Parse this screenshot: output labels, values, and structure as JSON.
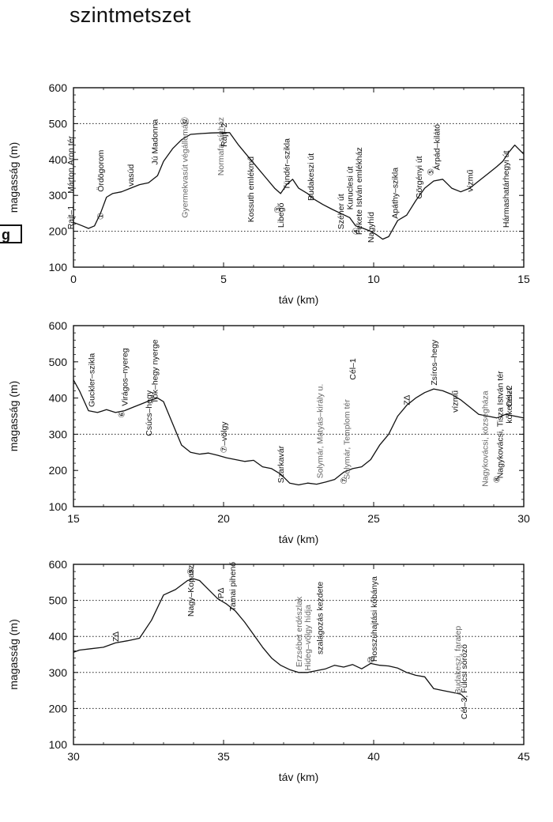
{
  "page": {
    "title": "szintmetszet",
    "side_mark": "g"
  },
  "chart_data": [
    {
      "type": "line",
      "xlabel": "táv (km)",
      "ylabel": "magasság (m)",
      "xlim": [
        0,
        15
      ],
      "ylim": [
        100,
        600
      ],
      "xticks": [
        0,
        5,
        10,
        15
      ],
      "yticks": [
        100,
        200,
        300,
        400,
        500,
        600
      ],
      "reference_lines": [
        200,
        500
      ],
      "series": [
        {
          "x": [
            0,
            0.3,
            0.5,
            0.7,
            0.9,
            1.1,
            1.3,
            1.6,
            1.9,
            2.2,
            2.5,
            2.8,
            3.0,
            3.3,
            3.6,
            3.9,
            4.2,
            4.6,
            5.0,
            5.2,
            5.5,
            5.8,
            6.1,
            6.4,
            6.7,
            6.9,
            7.1,
            7.3,
            7.5,
            7.8,
            8.0,
            8.3,
            8.6,
            8.9,
            9.2,
            9.4,
            9.6,
            9.9,
            10.1,
            10.3,
            10.5,
            10.8,
            11.1,
            11.4,
            11.7,
            12.0,
            12.3,
            12.6,
            12.9,
            13.2,
            13.5,
            13.8,
            14.1,
            14.3,
            14.5,
            14.7,
            15.0
          ],
          "y": [
            225,
            215,
            208,
            215,
            250,
            295,
            305,
            310,
            320,
            330,
            335,
            355,
            395,
            430,
            455,
            470,
            472,
            474,
            475,
            475,
            440,
            410,
            380,
            350,
            320,
            305,
            330,
            345,
            320,
            305,
            290,
            275,
            262,
            250,
            238,
            215,
            210,
            200,
            190,
            178,
            185,
            230,
            245,
            285,
            320,
            340,
            345,
            320,
            310,
            320,
            340,
            360,
            380,
            395,
            420,
            440,
            415
          ]
        }
      ],
      "annotations": [
        {
          "x": 0.0,
          "y": 205,
          "text": "Rajt–1"
        },
        {
          "x": 0.0,
          "y": 305,
          "text": "Márton Áron tér"
        },
        {
          "x": 1.0,
          "y": 310,
          "text": "Ördögorom"
        },
        {
          "x": 1.0,
          "y": 232,
          "text": "①"
        },
        {
          "x": 2.0,
          "y": 325,
          "text": "vasúd"
        },
        {
          "x": 2.8,
          "y": 385,
          "text": "Jú Madonna"
        },
        {
          "x": 3.8,
          "y": 237,
          "text": "Gyermekvasút végállomás",
          "gray": true
        },
        {
          "x": 3.8,
          "y": 495,
          "text": "⑫"
        },
        {
          "x": 5.0,
          "y": 355,
          "text": "Normafa sínház",
          "gray": true
        },
        {
          "x": 5.1,
          "y": 435,
          "text": "Rajt–2"
        },
        {
          "x": 6.0,
          "y": 225,
          "text": "Kossuth emlékmű"
        },
        {
          "x": 7.2,
          "y": 315,
          "text": "Tündér–szikla"
        },
        {
          "x": 6.9,
          "y": 250,
          "text": "③"
        },
        {
          "x": 7.0,
          "y": 210,
          "text": "Libegő"
        },
        {
          "x": 8.0,
          "y": 285,
          "text": "Budakeszi út"
        },
        {
          "x": 9.0,
          "y": 205,
          "text": "Széher út"
        },
        {
          "x": 9.3,
          "y": 260,
          "text": "Kuruclesi út"
        },
        {
          "x": 9.5,
          "y": 190,
          "text": "④"
        },
        {
          "x": 9.6,
          "y": 190,
          "text": "Fekete István emlékház"
        },
        {
          "x": 10.0,
          "y": 168,
          "text": "Nagyhíd"
        },
        {
          "x": 10.8,
          "y": 235,
          "text": "Apáthy–szikla"
        },
        {
          "x": 11.6,
          "y": 290,
          "text": "Görgényi út"
        },
        {
          "x": 12.0,
          "y": 355,
          "text": "⑤"
        },
        {
          "x": 12.2,
          "y": 370,
          "text": "Árpád–kilátó"
        },
        {
          "x": 13.3,
          "y": 310,
          "text": "vízmű"
        },
        {
          "x": 14.5,
          "y": 210,
          "text": "Hármashatárhegyi út"
        }
      ]
    },
    {
      "type": "line",
      "xlabel": "táv (km)",
      "ylabel": "magasság (m)",
      "xlim": [
        15,
        30
      ],
      "ylim": [
        100,
        600
      ],
      "xticks": [
        15,
        20,
        25,
        30
      ],
      "yticks": [
        100,
        200,
        300,
        400,
        500,
        600
      ],
      "reference_lines": [
        300
      ],
      "series": [
        {
          "x": [
            15,
            15.2,
            15.5,
            15.8,
            16.1,
            16.4,
            16.7,
            17.0,
            17.3,
            17.6,
            17.8,
            18.0,
            18.3,
            18.6,
            18.9,
            19.2,
            19.5,
            19.8,
            20.1,
            20.4,
            20.7,
            21.0,
            21.3,
            21.6,
            21.9,
            22.2,
            22.5,
            22.8,
            23.1,
            23.4,
            23.7,
            24.0,
            24.3,
            24.6,
            24.9,
            25.2,
            25.5,
            25.8,
            26.1,
            26.4,
            26.7,
            27.0,
            27.3,
            27.6,
            27.9,
            28.2,
            28.5,
            28.8,
            29.1,
            29.4,
            29.7,
            30.0
          ],
          "y": [
            450,
            420,
            365,
            360,
            368,
            360,
            365,
            375,
            385,
            395,
            400,
            390,
            330,
            270,
            250,
            245,
            248,
            242,
            235,
            230,
            225,
            228,
            210,
            205,
            190,
            165,
            160,
            165,
            162,
            168,
            175,
            195,
            205,
            210,
            230,
            270,
            300,
            350,
            380,
            400,
            415,
            425,
            420,
            410,
            395,
            375,
            355,
            350,
            345,
            355,
            350,
            345
          ]
        }
      ],
      "annotations": [
        {
          "x": 15.7,
          "y": 375,
          "text": "Guckler–szikla"
        },
        {
          "x": 16.7,
          "y": 345,
          "text": "⑥"
        },
        {
          "x": 16.8,
          "y": 378,
          "text": "Virágos–nyereg"
        },
        {
          "x": 17.6,
          "y": 295,
          "text": "Csúcs–hegy"
        },
        {
          "x": 17.8,
          "y": 385,
          "text": "Tök–hegy nyerge"
        },
        {
          "x": 20.1,
          "y": 248,
          "text": "⑦–völgy"
        },
        {
          "x": 22.0,
          "y": 165,
          "text": "Szarkavár"
        },
        {
          "x": 23.3,
          "y": 178,
          "text": "Solymár, Mátyás–király u.",
          "gray": true
        },
        {
          "x": 24.1,
          "y": 162,
          "text": "⑦"
        },
        {
          "x": 24.2,
          "y": 175,
          "text": "Solymár, Templom tér",
          "gray": true
        },
        {
          "x": 24.4,
          "y": 450,
          "text": "Cél–1"
        },
        {
          "x": 26.2,
          "y": 380,
          "text": "Z∆"
        },
        {
          "x": 27.1,
          "y": 435,
          "text": "Zsíros–hegy"
        },
        {
          "x": 27.8,
          "y": 360,
          "text": "vízmű"
        },
        {
          "x": 28.8,
          "y": 155,
          "text": "Nagykovácsi, községháza",
          "gray": true
        },
        {
          "x": 29.2,
          "y": 165,
          "text": "⑧"
        },
        {
          "x": 29.3,
          "y": 178,
          "text": "Nagykovácsi, Tisza István tér"
        },
        {
          "x": 29.6,
          "y": 375,
          "text": "Cél–2"
        },
        {
          "x": 29.6,
          "y": 330,
          "text": "kőkereszt"
        }
      ]
    },
    {
      "type": "line",
      "xlabel": "táv (km)",
      "ylabel": "magasság (m)",
      "xlim": [
        30,
        45
      ],
      "ylim": [
        100,
        600
      ],
      "xticks": [
        30,
        35,
        40,
        45
      ],
      "yticks": [
        100,
        200,
        300,
        400,
        500,
        600
      ],
      "reference_lines": [
        200,
        300,
        400,
        500
      ],
      "series": [
        {
          "x": [
            29.8,
            30.2,
            30.6,
            31.0,
            31.4,
            31.8,
            32.2,
            32.6,
            33.0,
            33.4,
            33.8,
            34.0,
            34.2,
            34.5,
            34.8,
            35.1,
            35.4,
            35.7,
            36.0,
            36.3,
            36.6,
            36.9,
            37.2,
            37.5,
            37.8,
            38.1,
            38.4,
            38.7,
            39.0,
            39.3,
            39.6,
            39.9,
            40.2,
            40.5,
            40.8,
            41.1,
            41.4,
            41.7,
            42.0,
            42.3,
            42.6,
            42.9,
            43.1
          ],
          "y": [
            350,
            362,
            366,
            370,
            382,
            388,
            395,
            445,
            515,
            530,
            555,
            560,
            555,
            530,
            505,
            490,
            470,
            440,
            405,
            370,
            340,
            320,
            308,
            300,
            300,
            305,
            310,
            320,
            315,
            322,
            310,
            325,
            320,
            318,
            312,
            300,
            292,
            288,
            255,
            250,
            245,
            240,
            225
          ]
        }
      ],
      "annotations": [
        {
          "x": 31.5,
          "y": 385,
          "text": "Z∆"
        },
        {
          "x": 34.0,
          "y": 455,
          "text": "Nagy–Kopasz"
        },
        {
          "x": 34.0,
          "y": 570,
          "text": "⑨"
        },
        {
          "x": 35.0,
          "y": 505,
          "text": "P∆"
        },
        {
          "x": 35.4,
          "y": 470,
          "text": "Tamai pihenő"
        },
        {
          "x": 37.6,
          "y": 315,
          "text": "Erzsébet erdészlak",
          "gray": true
        },
        {
          "x": 37.9,
          "y": 305,
          "text": "Hideg–völgy hídja",
          "gray": true
        },
        {
          "x": 38.3,
          "y": 350,
          "text": "szalagozás kezdete"
        },
        {
          "x": 40.0,
          "y": 325,
          "text": "⑩"
        },
        {
          "x": 40.1,
          "y": 330,
          "text": "Hosszúhajtási kőbánya"
        },
        {
          "x": 42.9,
          "y": 240,
          "text": "Budakeszi, faralep",
          "gray": true
        },
        {
          "x": 43.1,
          "y": 170,
          "text": "Cél–3, Fülcsi sörözö"
        }
      ]
    }
  ]
}
